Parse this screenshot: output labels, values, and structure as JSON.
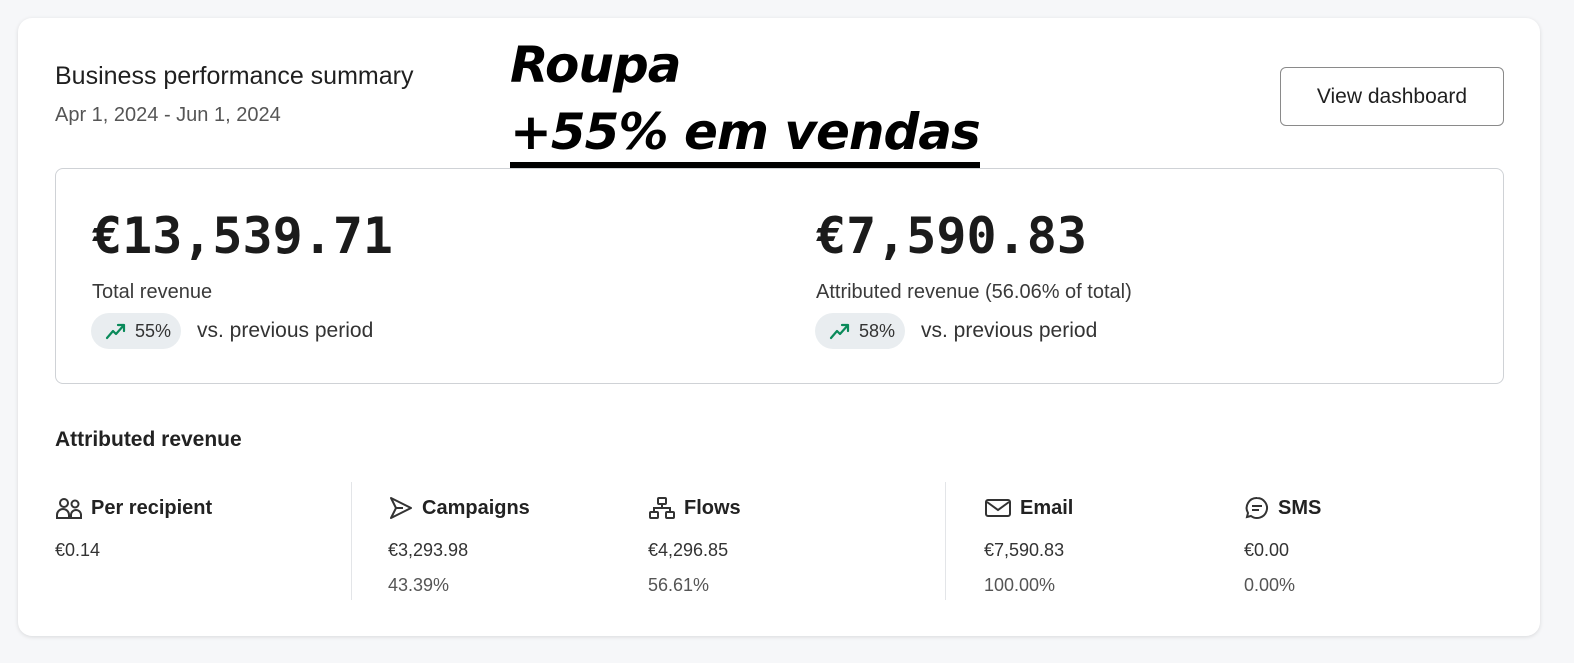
{
  "header": {
    "title": "Business performance summary",
    "date_range": "Apr 1, 2024 - Jun 1, 2024",
    "view_dashboard": "View dashboard"
  },
  "overlay": {
    "line1": "Roupa",
    "line2": "+55% em vendas"
  },
  "summary": {
    "total": {
      "value": "€13,539.71",
      "label": "Total revenue",
      "change": "55%",
      "comparison": "vs. previous period",
      "trend_icon": "trend-up-icon"
    },
    "attributed": {
      "value": "€7,590.83",
      "label": "Attributed revenue (56.06% of total)",
      "change": "58%",
      "comparison": "vs. previous period",
      "trend_icon": "trend-up-icon"
    }
  },
  "attributed_section": {
    "title": "Attributed revenue",
    "columns": [
      {
        "label": "Per recipient",
        "icon": "users-icon",
        "value": "€0.14"
      },
      {
        "label": "Campaigns",
        "icon": "send-icon",
        "value": "€3,293.98",
        "percent": "43.39%"
      },
      {
        "label": "Flows",
        "icon": "flow-icon",
        "value": "€4,296.85",
        "percent": "56.61%"
      },
      {
        "label": "Email",
        "icon": "mail-icon",
        "value": "€7,590.83",
        "percent": "100.00%"
      },
      {
        "label": "SMS",
        "icon": "chat-icon",
        "value": "€0.00",
        "percent": "0.00%"
      }
    ]
  },
  "colors": {
    "trend_up": "#0a8a5a",
    "pill_bg": "#e9edf0"
  }
}
